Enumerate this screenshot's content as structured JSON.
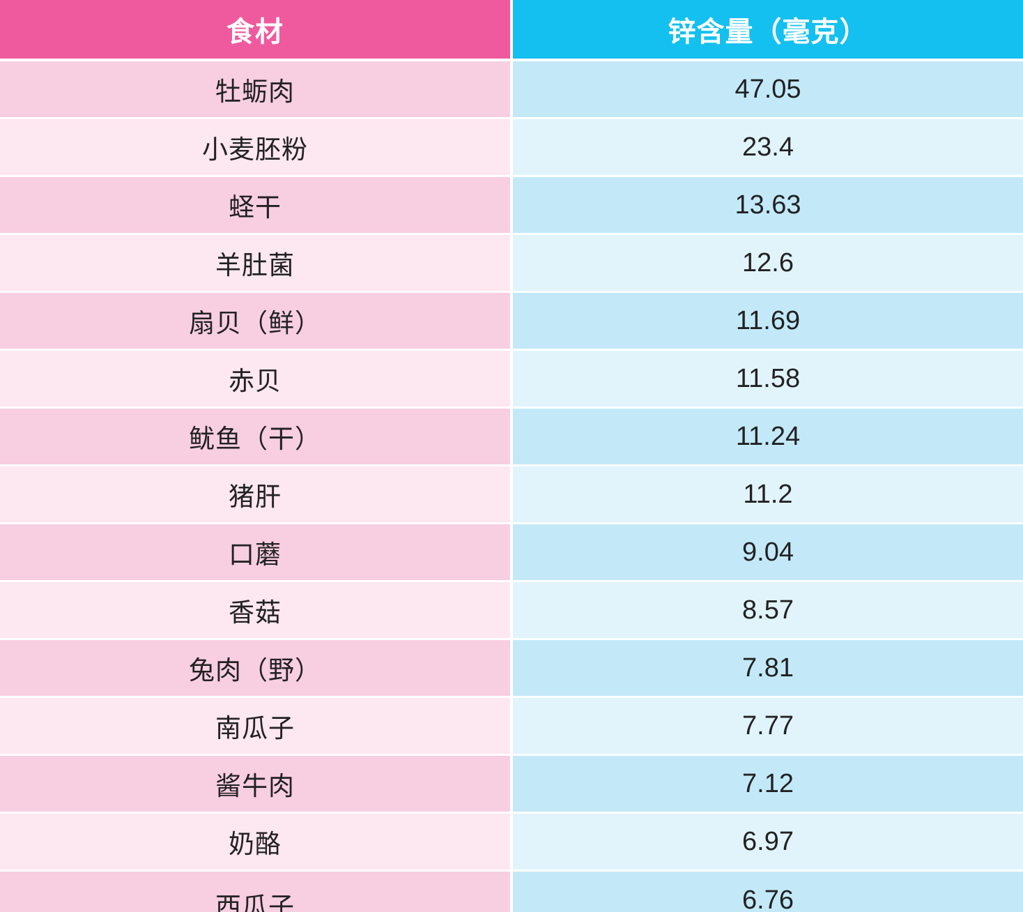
{
  "table": {
    "headers": {
      "food": "食材",
      "zinc": "锌含量（毫克）"
    },
    "rows": [
      {
        "food": "牡蛎肉",
        "zinc": "47.05"
      },
      {
        "food": "小麦胚粉",
        "zinc": "23.4"
      },
      {
        "food": "蛏干",
        "zinc": "13.63"
      },
      {
        "food": "羊肚菌",
        "zinc": "12.6"
      },
      {
        "food": "扇贝（鲜）",
        "zinc": "11.69"
      },
      {
        "food": "赤贝",
        "zinc": "11.58"
      },
      {
        "food": "鱿鱼（干）",
        "zinc": "11.24"
      },
      {
        "food": "猪肝",
        "zinc": "11.2"
      },
      {
        "food": "口蘑",
        "zinc": "9.04"
      },
      {
        "food": "香菇",
        "zinc": "8.57"
      },
      {
        "food": "兔肉（野）",
        "zinc": "7.81"
      },
      {
        "food": "南瓜子",
        "zinc": "7.77"
      },
      {
        "food": "酱牛肉",
        "zinc": "7.12"
      },
      {
        "food": "奶酪",
        "zinc": "6.97"
      },
      {
        "food": "西瓜子",
        "zinc": "6.76"
      }
    ]
  },
  "colors": {
    "header_left": "#ef5a9e",
    "header_right": "#14c0ef",
    "row_dark_left": "#f8cee1",
    "row_dark_right": "#c3e9f9",
    "row_light_left": "#fde7f0",
    "row_light_right": "#e1f4fc"
  }
}
